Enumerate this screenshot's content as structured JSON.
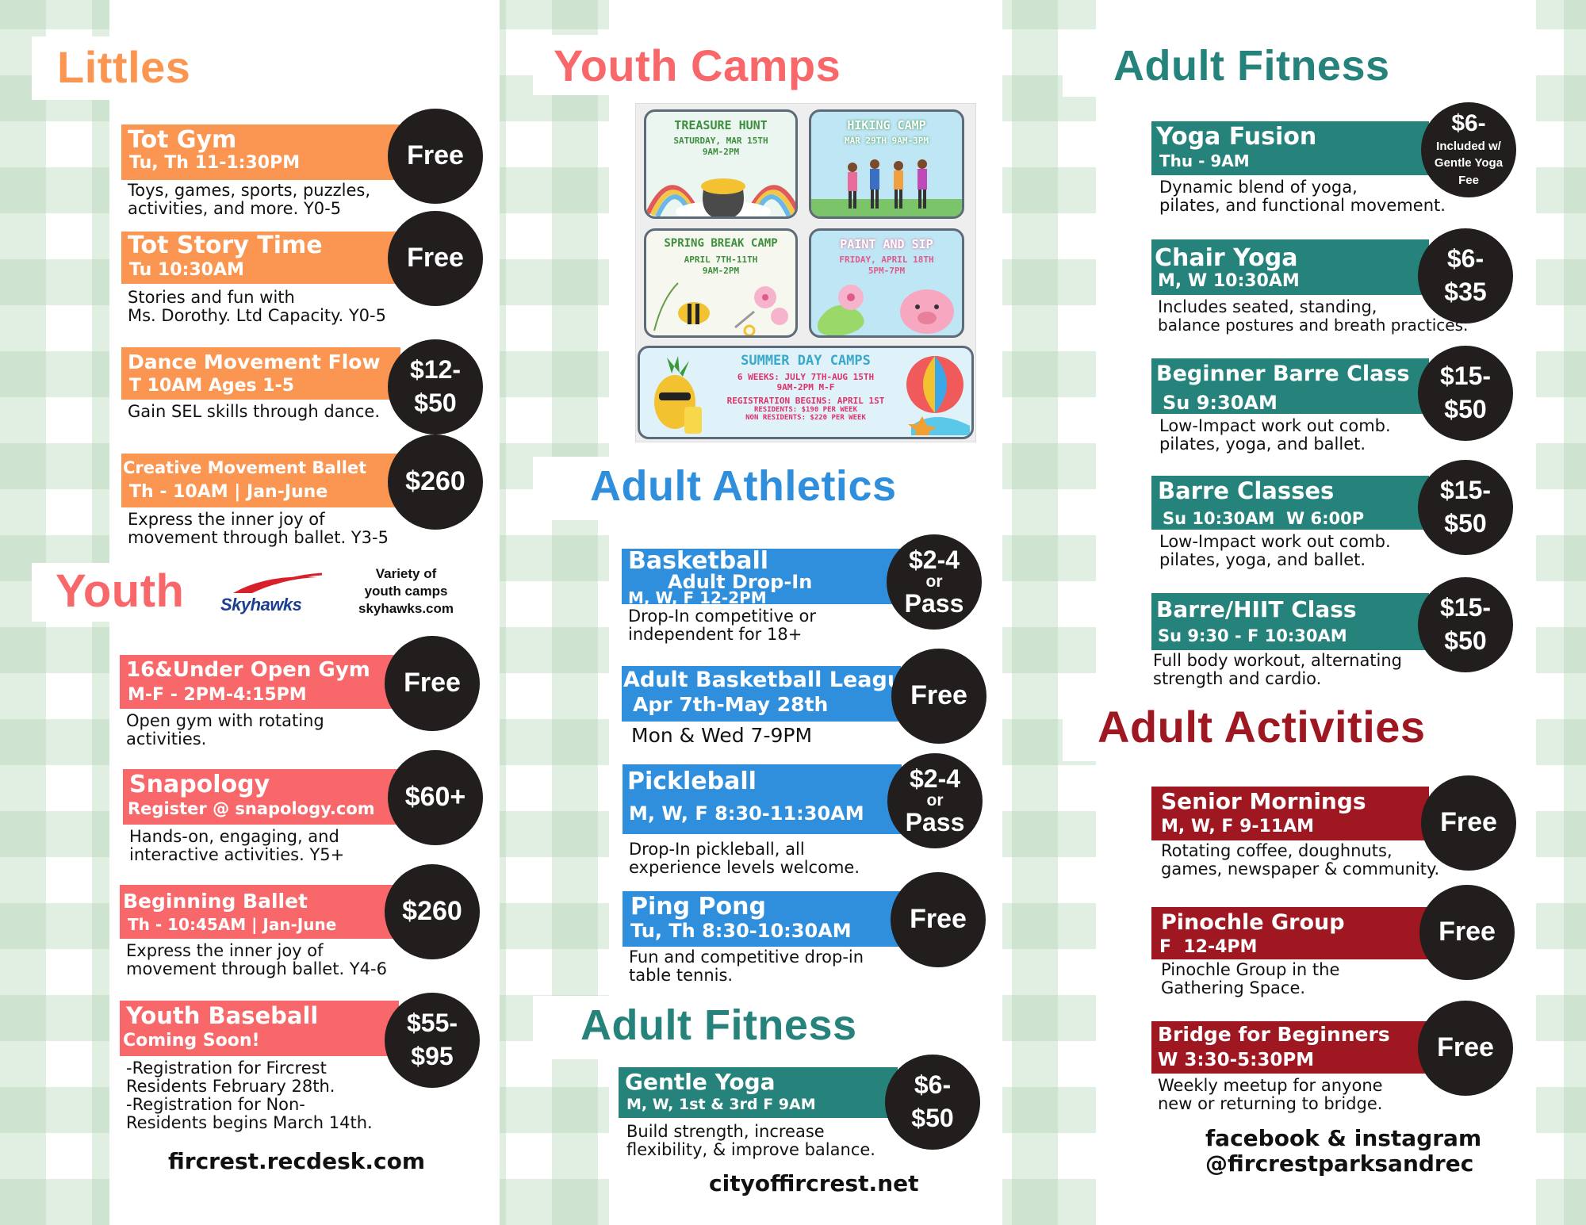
{
  "colors": {
    "littles": "#fb9652",
    "youth": "#f8686a",
    "athletics": "#2f8fdc",
    "fitness": "#26837c",
    "activities": "#9e1721",
    "circle": "#221e1d"
  },
  "col1": {
    "littles_title": "Littles",
    "tot_gym": {
      "title": "Tot Gym",
      "sub": "Tu, Th 11-1:30PM",
      "price": "Free",
      "d1": "Toys, games, sports, puzzles,",
      "d2": "activities, and more. Y0-5"
    },
    "tot_story": {
      "title": "Tot Story Time",
      "sub": "Tu 10:30AM",
      "price": "Free",
      "d1": "Stories and fun with",
      "d2": "Ms. Dorothy. Ltd Capacity. Y0-5"
    },
    "dance": {
      "title": "Dance Movement Flow",
      "sub": "T 10AM Ages 1-5",
      "p1": "$12-",
      "p2": "$50",
      "d1": "Gain SEL skills through dance."
    },
    "creative": {
      "title": "Creative Movement Ballet",
      "sub": "Th - 10AM | Jan-June",
      "price": "$260",
      "d1": "Express the inner joy of",
      "d2": "movement through ballet. Y3-5"
    },
    "youth_title": "Youth",
    "skyhawks_logo": "Skyhawks",
    "skyhawks_note1": "Variety of",
    "skyhawks_note2": "youth camps",
    "skyhawks_note3": "skyhawks.com",
    "open_gym": {
      "title": "16&Under Open Gym",
      "sub": "M-F - 2PM-4:15PM",
      "price": "Free",
      "d1": "Open gym with rotating",
      "d2": "activities."
    },
    "snapology": {
      "title": "Snapology",
      "sub": "Register @ snapology.com",
      "price": "$60+",
      "d1": "Hands-on, engaging, and",
      "d2": "interactive activities. Y5+"
    },
    "ballet": {
      "title": "Beginning Ballet",
      "sub": "Th - 10:45AM | Jan-June",
      "price": "$260",
      "d1": "Express the inner joy of",
      "d2": "movement through ballet. Y4-6"
    },
    "baseball": {
      "title": "Youth Baseball",
      "sub": "Coming Soon!",
      "p1": "$55-",
      "p2": "$95",
      "d1": "-Registration for Fircrest",
      "d2": "Residents February 28th.",
      "d3": "-Registration for Non-",
      "d4": "Residents begins March 14th."
    },
    "url": "fircrest.recdesk.com"
  },
  "col2": {
    "camps_title": "Youth Camps",
    "treasure": {
      "title": "TREASURE HUNT",
      "l1": "SATURDAY, MAR 15TH",
      "l2": "9AM-2PM"
    },
    "hiking": {
      "title": "HIKING CAMP",
      "l1": "MAR 29TH 9AM-3PM"
    },
    "spring": {
      "title": "SPRING BREAK CAMP",
      "l1": "APRIL 7TH-11TH",
      "l2": "9AM-2PM"
    },
    "paint": {
      "title": "PAINT AND SIP",
      "l1": "FRIDAY, APRIL 18TH",
      "l2": "5PM-7PM"
    },
    "summer": {
      "title": "SUMMER DAY CAMPS",
      "l1": "6 WEEKS: JULY 7TH-AUG 15TH",
      "l2": "9AM-2PM M-F",
      "l3": "REGISTRATION BEGINS: APRIL 1ST",
      "l4": "RESIDENTS: $190 PER WEEK",
      "l5": "NON RESIDENTS: $220 PER WEEK"
    },
    "athletics_title": "Adult Athletics",
    "basketball": {
      "title": "Basketball",
      "title2": "Adult Drop-In",
      "sub": "M, W, F 12-2PM",
      "p1": "$2-4",
      "or": "or",
      "p2": "Pass",
      "d1": "Drop-In competitive or",
      "d2": "independent for 18+"
    },
    "league": {
      "title": "Adult Basketball League",
      "sub": "Apr 7th-May 28th",
      "price": "Free",
      "d1": "Mon & Wed 7-9PM"
    },
    "pickleball": {
      "title": "Pickleball",
      "sub": "M, W, F 8:30-11:30AM",
      "p1": "$2-4",
      "or": "or",
      "p2": "Pass",
      "d1": "Drop-In pickleball, all",
      "d2": "experience levels welcome."
    },
    "pingpong": {
      "title": "Ping Pong",
      "sub": "Tu, Th 8:30-10:30AM",
      "price": "Free",
      "d1": "Fun and competitive drop-in",
      "d2": "table tennis."
    },
    "fitness_title": "Adult Fitness",
    "gentle": {
      "title": "Gentle Yoga",
      "sub": "M, W, 1st & 3rd F 9AM",
      "p1": "$6-",
      "p2": "$50",
      "d1": "Build strength, increase",
      "d2": "flexibility, & improve balance."
    },
    "url": "cityoffircrest.net"
  },
  "col3": {
    "fitness_title": "Adult Fitness",
    "yoga_fusion": {
      "title": "Yoga Fusion",
      "sub": "Thu - 9AM",
      "p1": "$6-",
      "s1": "Included w/",
      "s2": "Gentle Yoga",
      "s3": "Fee",
      "d1": "Dynamic blend of yoga,",
      "d2": "pilates, and functional movement."
    },
    "chair": {
      "title": "Chair Yoga",
      "sub": "M, W 10:30AM",
      "p1": "$6-",
      "p2": "$35",
      "d1": "Includes seated, standing,",
      "d2": "balance postures and breath practices."
    },
    "barre_beg": {
      "title": "Beginner Barre Class",
      "sub": "Su 9:30AM",
      "p1": "$15-",
      "p2": "$50",
      "d1": "Low-Impact work out comb.",
      "d2": "pilates, yoga, and ballet."
    },
    "barre": {
      "title": "Barre Classes",
      "sub": "Su 10:30AM  W 6:00P",
      "p1": "$15-",
      "p2": "$50",
      "d1": "Low-Impact work out comb.",
      "d2": "pilates, yoga, and ballet."
    },
    "barre_hiit": {
      "title": "Barre/HIIT Class",
      "sub": "Su 9:30 - F 10:30AM",
      "p1": "$15-",
      "p2": "$50",
      "d1": "Full body workout, alternating",
      "d2": "strength and cardio."
    },
    "activities_title": "Adult Activities",
    "senior": {
      "title": "Senior Mornings",
      "sub": "M, W, F 9-11AM",
      "price": "Free",
      "d1": "Rotating coffee, doughnuts,",
      "d2": "games, newspaper & community."
    },
    "pinochle": {
      "title": "Pinochle Group",
      "sub": "F  12-4PM",
      "price": "Free",
      "d1": "Pinochle Group in the",
      "d2": "Gathering Space."
    },
    "bridge": {
      "title": "Bridge for Beginners",
      "sub": "W 3:30-5:30PM",
      "price": "Free",
      "d1": "Weekly meetup for anyone",
      "d2": "new or returning to bridge."
    },
    "social1": "facebook & instagram",
    "social2": "@fircrestparksandrec"
  }
}
